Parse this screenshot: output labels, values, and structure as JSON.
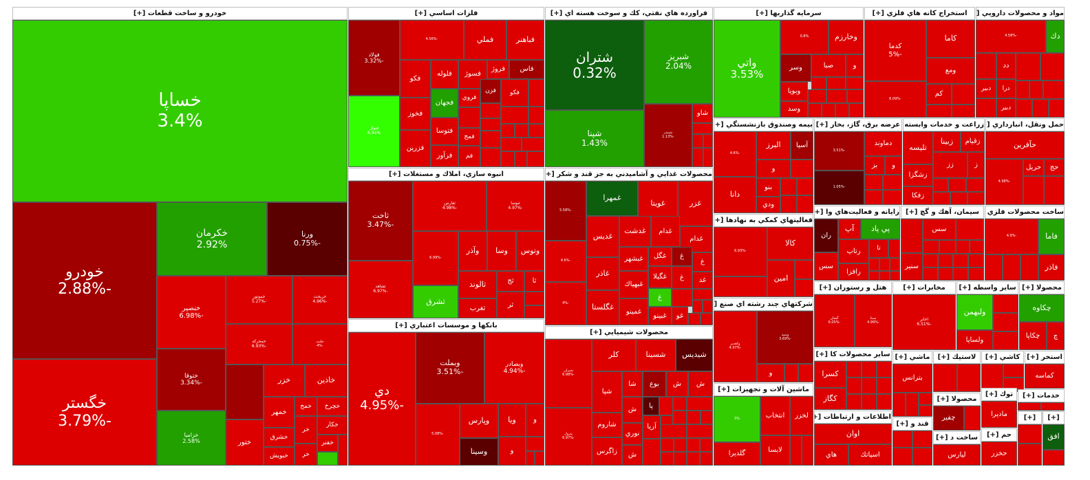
{
  "colors": {
    "strong_green": "#33cc00",
    "green": "#22a000",
    "dark_green": "#0d5e0d",
    "light_red": "#ff0000",
    "red": "#dd0000",
    "dark_red": "#a00000",
    "very_dark_red": "#5a0000",
    "bright_green": "#33ff00"
  },
  "chart_data": {
    "type": "treemap",
    "sectors": [
      {
        "name": "خودرو و ساخت قطعات [+]",
        "stocks": [
          {
            "symbol": "خساپا",
            "change": "3.4%"
          },
          {
            "symbol": "خودرو",
            "change": "-2.88%"
          },
          {
            "symbol": "خگستر",
            "change": "-3.79%"
          },
          {
            "symbol": "خكرمان",
            "change": "2.92%"
          },
          {
            "symbol": "ورنا",
            "change": "-0.75%"
          },
          {
            "symbol": "خنصير",
            "change": "-6.98%"
          },
          {
            "symbol": "خموتور",
            "change": "-5.27%"
          },
          {
            "symbol": "خريخت",
            "change": "-4.96%"
          },
          {
            "symbol": "خمحركه",
            "change": "-6.93%"
          },
          {
            "symbol": "خلنت",
            "change": "-4%"
          },
          {
            "symbol": "ختوقا",
            "change": "-3.34%"
          },
          {
            "symbol": "خزاميا",
            "change": "2.58%"
          },
          {
            "symbol": "خاذين"
          },
          {
            "symbol": "خزر"
          },
          {
            "symbol": "خمهر"
          },
          {
            "symbol": "خشرق"
          },
          {
            "symbol": "ختور"
          },
          {
            "symbol": "خبويش"
          },
          {
            "symbol": "خكار"
          },
          {
            "symbol": "خفنر"
          },
          {
            "symbol": "خمح"
          },
          {
            "symbol": "خچرخ"
          },
          {
            "symbol": "خر"
          }
        ]
      },
      {
        "name": "فلزات اساسي [+]",
        "stocks": [
          {
            "symbol": "فولاد",
            "change": "-3.32%"
          },
          {
            "symbol": "فنوال",
            "change": "6.94%"
          },
          {
            "symbol": "فملي"
          },
          {
            "symbol": "فباهنر"
          },
          {
            "symbol": "فلوله"
          },
          {
            "symbol": "فسوژ"
          },
          {
            "symbol": "فروژ"
          },
          {
            "symbol": "فاس"
          },
          {
            "symbol": "فجهان"
          },
          {
            "symbol": "فخوز"
          },
          {
            "symbol": "فتوسا"
          },
          {
            "symbol": "فرآور"
          },
          {
            "symbol": "فزرين"
          },
          {
            "symbol": "فنفت"
          },
          {
            "symbol": "فروي"
          },
          {
            "symbol": "فزن"
          },
          {
            "symbol": "فكو"
          },
          {
            "symbol": "فمج"
          },
          {
            "symbol": "فم"
          },
          {
            "symbol": "فخاس",
            "change": "-4.56%"
          }
        ]
      },
      {
        "name": "فراورده هاي نفتي، كك و سوخت هسته اي [+]",
        "stocks": [
          {
            "symbol": "شتران",
            "change": "0.32%"
          },
          {
            "symbol": "شبريز",
            "change": "2.04%"
          },
          {
            "symbol": "شپنا",
            "change": "1.43%"
          },
          {
            "symbol": "شبندر",
            "change": "-1.13%"
          },
          {
            "symbol": "شاو"
          }
        ]
      },
      {
        "name": "سرمايه گذاريها [+]",
        "stocks": [
          {
            "symbol": "واتي",
            "change": "3.53%"
          },
          {
            "symbol": "وخارزم"
          },
          {
            "symbol": "صبا"
          },
          {
            "symbol": "وبويا"
          },
          {
            "symbol": "وسد"
          },
          {
            "symbol": "وسر"
          },
          {
            "symbol": "و"
          },
          {
            "symbol": "ومعادن",
            "change": "0.8%"
          }
        ]
      },
      {
        "name": "استخراج كانه هاي فلزي [+]",
        "stocks": [
          {
            "symbol": "كدما",
            "change": "-5%"
          },
          {
            "symbol": "كاما"
          },
          {
            "symbol": "ومع"
          },
          {
            "symbol": "كم"
          },
          {
            "symbol": "كگل",
            "change": "-6.09%"
          }
        ]
      },
      {
        "name": "مواد و محصولات دارويي [+]",
        "stocks": [
          {
            "symbol": "دك"
          },
          {
            "symbol": "دد"
          },
          {
            "symbol": "درا"
          },
          {
            "symbol": "دبير"
          },
          {
            "symbol": "دسبحا",
            "change": "-4.58%"
          }
        ]
      },
      {
        "name": "بيمه وصندوق بازنشستگي [+]",
        "stocks": [
          {
            "symbol": "دانا"
          },
          {
            "symbol": "البرز"
          },
          {
            "symbol": "آسيا"
          },
          {
            "symbol": "بنو"
          },
          {
            "symbol": "ودي"
          },
          {
            "symbol": "و"
          },
          {
            "symbol": "بما",
            "change": "-4.6%"
          }
        ]
      },
      {
        "name": "عرضه برق، گاز، بخار [+]",
        "stocks": [
          {
            "symbol": "دماوند"
          },
          {
            "symbol": "بز"
          },
          {
            "symbol": "و"
          },
          {
            "symbol": "بمپنا",
            "change": "-3.51%"
          },
          {
            "symbol": "بكهنو",
            "change": "-1.05%"
          }
        ]
      },
      {
        "name": "زراعت و خدمات وابسته [+]",
        "stocks": [
          {
            "symbol": "تليسه"
          },
          {
            "symbol": "زبينا"
          },
          {
            "symbol": "زقيام"
          },
          {
            "symbol": "زشگزا"
          },
          {
            "symbol": "زفكا"
          },
          {
            "symbol": "زز"
          },
          {
            "symbol": "ز"
          }
        ]
      },
      {
        "name": "حمل ونقل، انبارداري [+]",
        "stocks": [
          {
            "symbol": "حآفرين"
          },
          {
            "symbol": "حريل"
          },
          {
            "symbol": "حج"
          },
          {
            "symbol": "حكشتي",
            "change": "-4.98%"
          }
        ]
      },
      {
        "name": "انبوه سازي، املاك و مستغلات [+]",
        "stocks": [
          {
            "symbol": "ثاخت",
            "change": "-3.47%"
          },
          {
            "symbol": "ثفارس",
            "change": "-4.98%"
          },
          {
            "symbol": "ثنوسا",
            "change": "-4.97%"
          },
          {
            "symbol": "ثشاهد",
            "change": "-6.97%"
          },
          {
            "symbol": "ثبهساز",
            "change": "-6.99%"
          },
          {
            "symbol": "وآذر"
          },
          {
            "symbol": "وسا"
          },
          {
            "symbol": "وتوس"
          },
          {
            "symbol": "ثالوند"
          },
          {
            "symbol": "ثشرق"
          },
          {
            "symbol": "ثغرب"
          },
          {
            "symbol": "ثج"
          },
          {
            "symbol": "ثا"
          },
          {
            "symbol": "ثر"
          }
        ]
      },
      {
        "name": "محصولات غذايي و آشاميدني به جز قند و شكر [+]",
        "stocks": [
          {
            "symbol": "غمهرا"
          },
          {
            "symbol": "غويتا"
          },
          {
            "symbol": "غزر"
          },
          {
            "symbol": "غديس"
          },
          {
            "symbol": "غدشت"
          },
          {
            "symbol": "غدام"
          },
          {
            "symbol": "غبشهر"
          },
          {
            "symbol": "غگل"
          },
          {
            "symbol": "غكو"
          },
          {
            "symbol": "غاذر"
          },
          {
            "symbol": "غبهپاك"
          },
          {
            "symbol": "غگيلا"
          },
          {
            "symbol": "غگلستا"
          },
          {
            "symbol": "غمينو"
          },
          {
            "symbol": "غبينو"
          },
          {
            "symbol": "غ"
          },
          {
            "symbol": "غد"
          },
          {
            "symbol": "غو"
          },
          {
            "symbol": "غسالم",
            "change": "-5.58%"
          },
          {
            "symbol": "غپاك",
            "change": "-4.6%"
          },
          {
            "symbol": "غدام",
            "change": "-4%"
          }
        ]
      },
      {
        "name": "فعاليتهاي كمكي به نهادها [+]",
        "stocks": [
          {
            "symbol": "كالا"
          },
          {
            "symbol": "امين"
          },
          {
            "symbol": "اتكاي",
            "change": "-6.93%"
          },
          {
            "symbol": "ا"
          }
        ]
      },
      {
        "name": "رايانه و فعاليت‌هاي وا [+]",
        "stocks": [
          {
            "symbol": "پي پاد"
          },
          {
            "symbol": "آپ"
          },
          {
            "symbol": "ران"
          },
          {
            "symbol": "رتاپ"
          },
          {
            "symbol": "تا"
          },
          {
            "symbol": "رافزا"
          },
          {
            "symbol": "سس"
          }
        ]
      },
      {
        "name": "سيمان، آهك و گچ [+]",
        "stocks": [
          {
            "symbol": "سس"
          },
          {
            "symbol": "سنير"
          },
          {
            "symbol": "س"
          }
        ]
      },
      {
        "name": "ساخت محصولات فلزي [+]",
        "stocks": [
          {
            "symbol": "فاما"
          },
          {
            "symbol": "فاذر"
          },
          {
            "symbol": "فجر",
            "change": "-4.9%"
          }
        ]
      },
      {
        "name": "بانكها و موسسات اعتباري [+]",
        "stocks": [
          {
            "symbol": "دي",
            "change": "-4.95%"
          },
          {
            "symbol": "وبملت",
            "change": "-3.51%"
          },
          {
            "symbol": "وبصادر",
            "change": "-4.94%"
          },
          {
            "symbol": "وتجارت",
            "change": "-5.08%"
          },
          {
            "symbol": "وپارس"
          },
          {
            "symbol": "ويا"
          },
          {
            "symbol": "وسينا"
          },
          {
            "symbol": "و"
          }
        ]
      },
      {
        "name": "محصولات شيميايي [+]",
        "stocks": [
          {
            "symbol": "شيديس"
          },
          {
            "symbol": "شسينا"
          },
          {
            "symbol": "كلر"
          },
          {
            "symbol": "شپا"
          },
          {
            "symbol": "شا"
          },
          {
            "symbol": "بوع"
          },
          {
            "symbol": "ش"
          },
          {
            "symbol": "شاروم"
          },
          {
            "symbol": "نوري"
          },
          {
            "symbol": "آريا"
          },
          {
            "symbol": "زاگرس"
          },
          {
            "symbol": "پا"
          },
          {
            "symbol": "شيران",
            "change": "-6.98%"
          },
          {
            "symbol": "پترول",
            "change": "-6.97%"
          }
        ]
      },
      {
        "name": "شركتهاي چند رشته اي صنع [+]",
        "stocks": [
          {
            "symbol": "وكغدير",
            "change": "-4.97%"
          },
          {
            "symbol": "وسپه",
            "change": "-3.69%"
          },
          {
            "symbol": "و"
          }
        ]
      },
      {
        "name": "هتل و رستوران [+]",
        "stocks": [
          {
            "symbol": "گشان",
            "change": "-6.05%"
          },
          {
            "symbol": "سبتا",
            "change": "-4.99%"
          }
        ]
      },
      {
        "name": "مخابرات [+]",
        "stocks": [
          {
            "symbol": "اخابر",
            "change": "-6.51%"
          }
        ]
      },
      {
        "name": "سایر واسطه [+]",
        "stocks": [
          {
            "symbol": "ولبهمن"
          },
          {
            "symbol": "ولساپا"
          }
        ]
      },
      {
        "name": "محصولا [+]",
        "stocks": [
          {
            "symbol": "چكاوه"
          },
          {
            "symbol": "چكاپا"
          },
          {
            "symbol": "چ"
          }
        ]
      },
      {
        "name": "ساير محصولات كا [+]",
        "stocks": [
          {
            "symbol": "كسرا"
          },
          {
            "symbol": "كگاز"
          }
        ]
      },
      {
        "name": "ماشين آلات و تجهيزات [+]",
        "stocks": [
          {
            "symbol": "انتخاب"
          },
          {
            "symbol": "لخزر"
          },
          {
            "symbol": "لابسا"
          },
          {
            "symbol": "گلديرا"
          },
          {
            "symbol": "وتوشه",
            "change": "3%"
          }
        ]
      },
      {
        "name": "اطلاعات و ارتباطات [+]",
        "stocks": [
          {
            "symbol": "اوان"
          },
          {
            "symbol": "هاي"
          },
          {
            "symbol": "اسياتك"
          }
        ]
      },
      {
        "name": "ماشي [+]",
        "stocks": [
          {
            "symbol": "بترانس"
          }
        ]
      },
      {
        "name": "لاستيك [+]",
        "stocks": []
      },
      {
        "name": "كاشي [+]",
        "stocks": []
      },
      {
        "name": "استخر [+]",
        "stocks": [
          {
            "symbol": "كماسه"
          }
        ]
      },
      {
        "name": "محصولا [+]",
        "stocks": [
          {
            "symbol": "چفير"
          }
        ]
      },
      {
        "name": "قند و [+]",
        "stocks": []
      },
      {
        "name": "ساخت د [+]",
        "stocks": [
          {
            "symbol": "ليارس"
          }
        ]
      },
      {
        "name": "توك [+]",
        "stocks": [
          {
            "symbol": "ماديرا"
          }
        ]
      },
      {
        "name": "حم [+]",
        "stocks": [
          {
            "symbol": "حخزر"
          }
        ]
      },
      {
        "name": "خدمات [+]",
        "stocks": []
      },
      {
        "name": "[+]",
        "stocks": [
          {
            "symbol": "افق"
          }
        ]
      }
    ]
  }
}
